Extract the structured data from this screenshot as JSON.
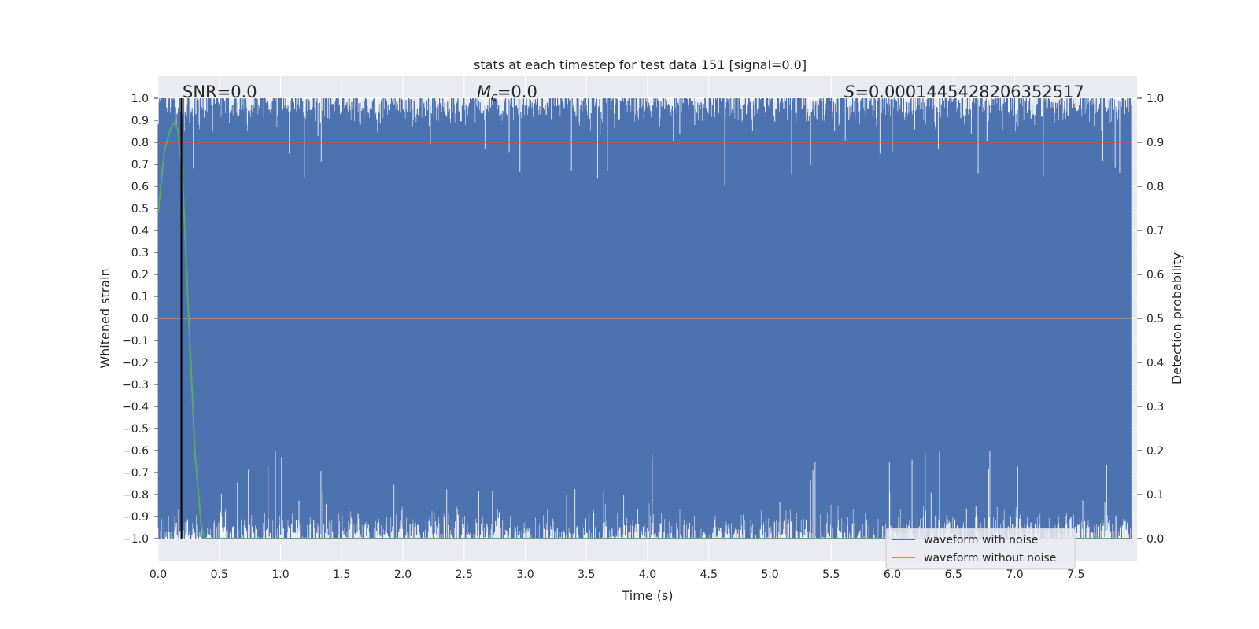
{
  "chart_data": {
    "type": "line",
    "title": "stats at each timestep for test data 151 [signal=0.0]",
    "xlabel": "Time (s)",
    "ylabel_left": "Whitened strain",
    "ylabel_right": "Detection probability",
    "xlim": [
      0.0,
      8.0
    ],
    "ylim_left": [
      -1.1,
      1.1
    ],
    "ylim_right": [
      -0.05,
      1.05
    ],
    "x_ticks": [
      0.0,
      0.5,
      1.0,
      1.5,
      2.0,
      2.5,
      3.0,
      3.5,
      4.0,
      4.5,
      5.0,
      5.5,
      6.0,
      6.5,
      7.0,
      7.5
    ],
    "x_tick_labels": [
      "0.0",
      "0.5",
      "1.0",
      "1.5",
      "2.0",
      "2.5",
      "3.0",
      "3.5",
      "4.0",
      "4.5",
      "5.0",
      "5.5",
      "6.0",
      "6.5",
      "7.0",
      "7.5"
    ],
    "y_left_ticks": [
      1.0,
      0.9,
      0.8,
      0.7,
      0.6,
      0.5,
      0.4,
      0.3,
      0.2,
      0.1,
      0.0,
      -0.1,
      -0.2,
      -0.3,
      -0.4,
      -0.5,
      -0.6,
      -0.7,
      -0.8,
      -0.9,
      -1.0
    ],
    "y_left_tick_labels": [
      "1.0",
      "0.9",
      "0.8",
      "0.7",
      "0.6",
      "0.5",
      "0.4",
      "0.3",
      "0.2",
      "0.1",
      "0.0",
      "−0.1",
      "−0.2",
      "−0.3",
      "−0.4",
      "−0.5",
      "−0.6",
      "−0.7",
      "−0.8",
      "−0.9",
      "−1.0"
    ],
    "y_right_ticks": [
      1.0,
      0.9,
      0.8,
      0.7,
      0.6,
      0.5,
      0.4,
      0.3,
      0.2,
      0.1,
      0.0
    ],
    "y_right_tick_labels": [
      "1.0",
      "0.9",
      "0.8",
      "0.7",
      "0.6",
      "0.5",
      "0.4",
      "0.3",
      "0.2",
      "0.1",
      "0.0"
    ],
    "grid": true,
    "legend_placement": "lower-right",
    "series": [
      {
        "name": "waveform with noise",
        "axis": "left",
        "color": "#4c72b0",
        "description_kind": "dense noise spanning roughly -1.0 to 1.0",
        "x_range": [
          0.0,
          7.95
        ],
        "approx_envelope": [
          -1.0,
          1.0
        ]
      },
      {
        "name": "waveform without noise",
        "axis": "left",
        "color": "#dd8452",
        "x": [
          0.0,
          7.95
        ],
        "y": [
          0.0,
          0.0
        ]
      },
      {
        "axis": "right",
        "color": "#55a868",
        "x": [
          0.0,
          0.05,
          0.1,
          0.13,
          0.16,
          0.2,
          0.25,
          0.3,
          0.35,
          0.38,
          0.5,
          1.0,
          2.0,
          4.0,
          6.0,
          7.95
        ],
        "y": [
          0.74,
          0.88,
          0.93,
          0.945,
          0.93,
          0.82,
          0.5,
          0.2,
          0.035,
          0.0,
          0.0,
          0.0,
          0.0,
          0.0,
          0.0,
          0.0
        ]
      },
      {
        "axis": "right",
        "color": "#dd4b39",
        "x": [
          0.0,
          7.95
        ],
        "y": [
          0.9,
          0.9
        ]
      }
    ],
    "vertical_line": {
      "x": 0.19,
      "color": "#000000"
    },
    "annotations": {
      "snr": "SNR=0.0",
      "mc_symbol": "M",
      "mc_subscript": "c",
      "mc_value": "=0.0",
      "s_symbol": "S",
      "s_value": "=0.0001445428206352517"
    },
    "legend": {
      "entries": [
        "waveform with noise",
        "waveform without noise"
      ],
      "colors": [
        "#4c72b0",
        "#dd8452"
      ]
    },
    "colors": {
      "axes_bg": "#eaeaf2",
      "grid": "#ffffff"
    }
  }
}
